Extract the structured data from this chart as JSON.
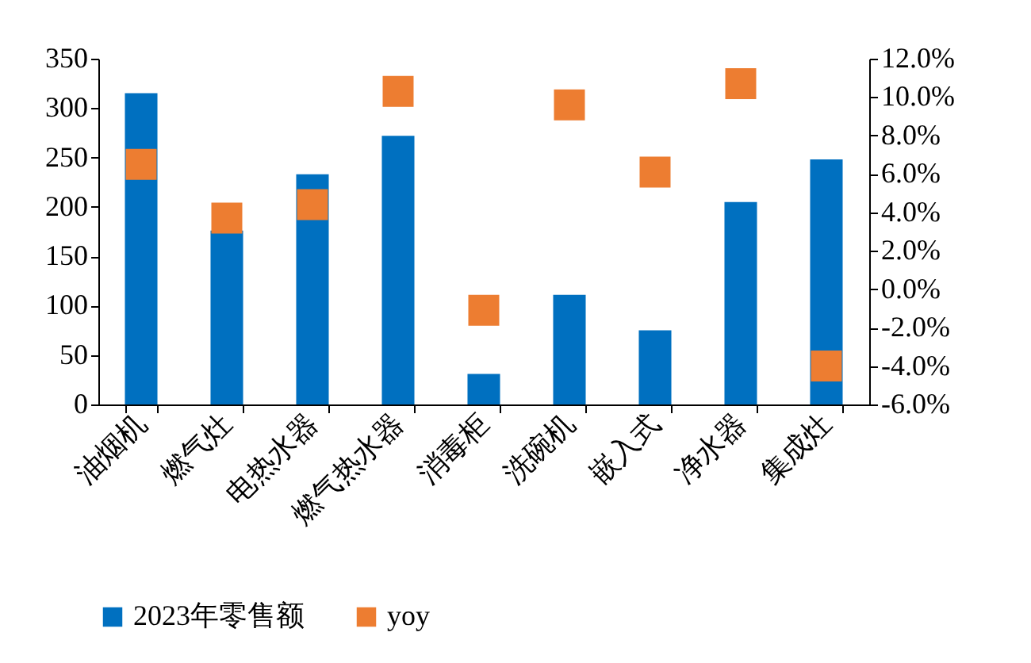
{
  "chart_data": {
    "type": "bar",
    "categories": [
      "油烟机",
      "燃气灶",
      "电热水器",
      "燃气热水器",
      "消毒柜",
      "洗碗机",
      "嵌入式",
      "净水器",
      "集成灶"
    ],
    "series": [
      {
        "name": "2023年零售额",
        "color": "#0070c0",
        "values": [
          315,
          176,
          233,
          272,
          31,
          111,
          75,
          205,
          248
        ]
      },
      {
        "name": "yoy",
        "type": "scatter",
        "axis": "y2",
        "marker": "square",
        "color": "#ed7d31",
        "values": [
          6.5,
          3.7,
          4.4,
          10.3,
          -1.1,
          9.6,
          6.1,
          10.7,
          -4.0
        ]
      }
    ],
    "ylim": [
      0,
      350
    ],
    "yticks": [
      0,
      50,
      100,
      150,
      200,
      250,
      300,
      350
    ],
    "y2lim": [
      -6,
      12
    ],
    "y2ticks": [
      {
        "value": -6,
        "label": "-6.0%"
      },
      {
        "value": -4,
        "label": "-4.0%"
      },
      {
        "value": -2,
        "label": "-2.0%"
      },
      {
        "value": 0,
        "label": "0.0%"
      },
      {
        "value": 2,
        "label": "2.0%"
      },
      {
        "value": 4,
        "label": "4.0%"
      },
      {
        "value": 6,
        "label": "6.0%"
      },
      {
        "value": 8,
        "label": "8.0%"
      },
      {
        "value": 10,
        "label": "10.0%"
      },
      {
        "value": 12,
        "label": "12.0%"
      }
    ],
    "legend": "bottom",
    "grid": false
  }
}
